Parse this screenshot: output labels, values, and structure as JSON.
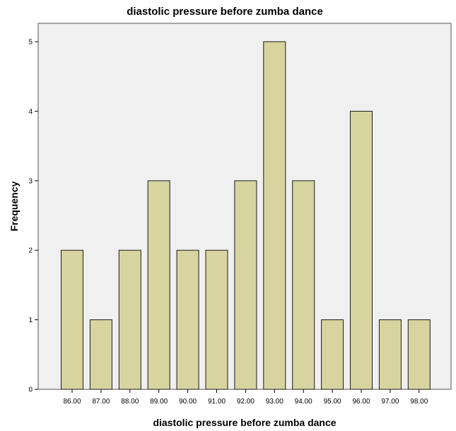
{
  "chart_data": {
    "type": "bar",
    "title": "diastolic pressure before zumba dance",
    "xlabel": "diastolic pressure before zumba dance",
    "ylabel": "Frequency",
    "categories": [
      "86.00",
      "87.00",
      "88.00",
      "89.00",
      "90.00",
      "91.00",
      "92.00",
      "93.00",
      "94.00",
      "95.00",
      "96.00",
      "97.00",
      "98.00"
    ],
    "values": [
      2,
      1,
      2,
      3,
      2,
      2,
      3,
      5,
      3,
      1,
      4,
      1,
      1
    ],
    "ylim": [
      0,
      5
    ],
    "yticks": [
      "0",
      "1",
      "2",
      "3",
      "4",
      "5"
    ],
    "grid": false,
    "colors": {
      "bar_fill": "#d8d4a0",
      "bar_stroke": "#1a1a1a",
      "plot_background": "#f0f0f0",
      "frame": "#555555"
    }
  }
}
